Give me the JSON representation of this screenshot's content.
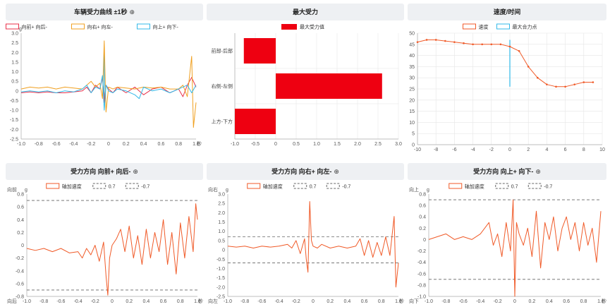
{
  "panels": {
    "p1": {
      "title": "车辆受力曲线 ±1秒",
      "zoom_icon": "zoom-in-icon"
    },
    "p2": {
      "title": "最大受力"
    },
    "p3": {
      "title": "速度/时间"
    },
    "p4": {
      "title": "受力方向 向前+ 向后-",
      "zoom_icon": "zoom-in-icon"
    },
    "p5": {
      "title": "受力方向 向右+ 向左-",
      "zoom_icon": "zoom-in-icon"
    },
    "p6": {
      "title": "受力方向 向上+ 向下-",
      "zoom_icon": "zoom-in-icon"
    }
  },
  "colors": {
    "red": "#e8304a",
    "orange": "#f0a020",
    "cyan": "#30b8e8",
    "bar": "#ee0011",
    "line": "#f05a28",
    "dash": "#666666"
  },
  "chart_data": [
    {
      "id": "p1",
      "type": "line",
      "ylabel": "g",
      "xlabel": "",
      "xlim": [
        -1.0,
        1.0
      ],
      "ylim": [
        -2.5,
        3.0
      ],
      "xticks": [
        "-1.0",
        "-0.8",
        "-0.6",
        "-0.4",
        "-0.2",
        "0",
        "0.2",
        "0.4",
        "0.6",
        "0.8",
        "1.0"
      ],
      "yticks": [
        "3.0",
        "2.5",
        "2.0",
        "1.5",
        "1.0",
        "0.5",
        "0",
        "-0.5",
        "-1.0",
        "-1.5",
        "-2.0",
        "-2.5"
      ],
      "x_unit": "秒",
      "legend": [
        "向前+ 向后-",
        "向右+ 向左-",
        "向上+ 向下-"
      ],
      "marker_x": -0.05,
      "series": [
        {
          "name": "向前+ 向后-",
          "color": "#e8304a",
          "x": [
            -1.0,
            -0.9,
            -0.8,
            -0.7,
            -0.6,
            -0.5,
            -0.4,
            -0.3,
            -0.25,
            -0.2,
            -0.15,
            -0.1,
            -0.07,
            -0.05,
            -0.03,
            0,
            0.05,
            0.1,
            0.2,
            0.3,
            0.4,
            0.5,
            0.6,
            0.7,
            0.8,
            0.85,
            0.9,
            0.95,
            1.0
          ],
          "values": [
            -0.1,
            -0.05,
            -0.1,
            -0.05,
            -0.1,
            -0.1,
            -0.05,
            0.0,
            0.2,
            -0.1,
            0.3,
            0.1,
            0.7,
            -0.6,
            0.3,
            0.1,
            -0.1,
            0.2,
            -0.1,
            0.2,
            -0.2,
            0.1,
            0.2,
            -0.1,
            0.1,
            -0.3,
            0.3,
            0.7,
            0.2
          ]
        },
        {
          "name": "向右+ 向左-",
          "color": "#f0a020",
          "x": [
            -1.0,
            -0.9,
            -0.8,
            -0.7,
            -0.6,
            -0.5,
            -0.4,
            -0.3,
            -0.25,
            -0.2,
            -0.15,
            -0.1,
            -0.07,
            -0.05,
            -0.03,
            0,
            0.05,
            0.1,
            0.2,
            0.3,
            0.4,
            0.5,
            0.6,
            0.7,
            0.8,
            0.85,
            0.9,
            0.95,
            0.97,
            1.0
          ],
          "values": [
            0.1,
            0.2,
            0.15,
            0.2,
            0.1,
            0.2,
            0.15,
            0.1,
            0.3,
            0.5,
            0.2,
            0.4,
            -0.4,
            2.6,
            -1.1,
            0.2,
            0.1,
            0.2,
            0.15,
            0.1,
            0.2,
            0.15,
            0.2,
            0.1,
            0.1,
            0.3,
            -0.3,
            1.8,
            -1.9,
            -0.6
          ]
        },
        {
          "name": "向上+ 向下-",
          "color": "#30b8e8",
          "x": [
            -1.0,
            -0.9,
            -0.8,
            -0.7,
            -0.6,
            -0.5,
            -0.4,
            -0.3,
            -0.25,
            -0.2,
            -0.15,
            -0.1,
            -0.07,
            -0.05,
            -0.03,
            0,
            0.05,
            0.1,
            0.2,
            0.3,
            0.35,
            0.4,
            0.5,
            0.6,
            0.7,
            0.8,
            0.9,
            0.95,
            1.0
          ],
          "values": [
            -0.05,
            0.0,
            -0.05,
            0.0,
            -0.1,
            0.0,
            -0.05,
            0.1,
            0.3,
            -0.1,
            0.2,
            0.1,
            0.8,
            -1.0,
            0.3,
            0.0,
            -0.1,
            0.1,
            0.0,
            -0.2,
            -0.4,
            0.2,
            0.0,
            0.1,
            -0.1,
            0.1,
            0.3,
            -0.1,
            0.3
          ]
        }
      ]
    },
    {
      "id": "p2",
      "type": "bar",
      "orientation": "horizontal",
      "categories": [
        "前部-后部",
        "右侧-左侧",
        "上方-下方"
      ],
      "values": [
        -0.78,
        2.6,
        -1.0
      ],
      "xlim": [
        -1.0,
        3.0
      ],
      "xticks": [
        "-1.0",
        "-0.5",
        "0",
        "0.5",
        "1.0",
        "1.5",
        "2.0",
        "2.5",
        "3.0"
      ],
      "legend": [
        "最大受力值"
      ]
    },
    {
      "id": "p3",
      "type": "line",
      "xlim": [
        -10,
        10
      ],
      "ylim": [
        0,
        50
      ],
      "xticks": [
        "-10",
        "-8",
        "-6",
        "-4",
        "-2",
        "0",
        "2",
        "4",
        "6",
        "8",
        "10"
      ],
      "yticks": [
        "50",
        "45",
        "40",
        "35",
        "30",
        "25",
        "20",
        "15",
        "10",
        "5",
        "0"
      ],
      "legend": [
        "速度",
        "最大合力点"
      ],
      "marker_x": 0,
      "marker_range": [
        26,
        47
      ],
      "series": [
        {
          "name": "速度",
          "x": [
            -10,
            -9,
            -8,
            -7,
            -6,
            -5,
            -4,
            -3,
            -2,
            -1,
            0,
            1,
            2,
            3,
            4,
            5,
            6,
            7,
            8,
            9
          ],
          "values": [
            46,
            47,
            47,
            46.5,
            46,
            45.5,
            45,
            45,
            45,
            45,
            44,
            42,
            35,
            30,
            27,
            26,
            26,
            27,
            28,
            28
          ]
        }
      ]
    },
    {
      "id": "p4",
      "type": "line",
      "ylabel": "g",
      "y_caption": "向前",
      "x_caption": "向后",
      "xlim": [
        -1.0,
        1.0
      ],
      "ylim": [
        -0.8,
        0.8
      ],
      "xticks": [
        "-1.0",
        "-0.8",
        "-0.6",
        "-0.4",
        "-0.2",
        "0",
        "0.2",
        "0.4",
        "0.6",
        "0.8",
        "1.0"
      ],
      "yticks": [
        "0.8",
        "0.6",
        "0.4",
        "0.2",
        "0",
        "-0.2",
        "-0.4",
        "-0.6",
        "-0.8"
      ],
      "x_unit": "秒",
      "legend": [
        "轴加速度",
        "0.7",
        "-0.7"
      ],
      "thresholds": [
        0.7,
        -0.7
      ],
      "series": [
        {
          "name": "轴加速度",
          "x": [
            -1.0,
            -0.9,
            -0.8,
            -0.7,
            -0.6,
            -0.5,
            -0.4,
            -0.35,
            -0.3,
            -0.25,
            -0.2,
            -0.15,
            -0.1,
            -0.07,
            -0.05,
            -0.03,
            0,
            0.05,
            0.1,
            0.15,
            0.2,
            0.25,
            0.3,
            0.35,
            0.4,
            0.45,
            0.5,
            0.55,
            0.6,
            0.65,
            0.7,
            0.75,
            0.8,
            0.85,
            0.9,
            0.95,
            0.98,
            1.0
          ],
          "values": [
            -0.05,
            -0.08,
            -0.05,
            -0.1,
            -0.05,
            -0.12,
            -0.1,
            -0.2,
            -0.05,
            -0.15,
            0.0,
            -0.25,
            0.05,
            -0.5,
            -0.78,
            -0.2,
            0.0,
            0.1,
            0.25,
            -0.1,
            0.3,
            -0.2,
            0.15,
            -0.3,
            0.25,
            -0.2,
            0.2,
            -0.1,
            0.4,
            -0.3,
            0.2,
            -0.45,
            0.35,
            -0.2,
            0.45,
            -0.1,
            0.65,
            0.4
          ]
        }
      ]
    },
    {
      "id": "p5",
      "type": "line",
      "ylabel": "g",
      "y_caption": "向右",
      "x_caption": "向左",
      "xlim": [
        -1.0,
        1.0
      ],
      "ylim": [
        -2.5,
        3.0
      ],
      "xticks": [
        "-1.0",
        "-0.8",
        "-0.6",
        "-0.4",
        "-0.2",
        "0",
        "0.2",
        "0.4",
        "0.6",
        "0.8",
        "1.0"
      ],
      "yticks": [
        "3.0",
        "2.5",
        "2.0",
        "1.5",
        "1.0",
        "0.5",
        "0",
        "-0.5",
        "-1.0",
        "-1.5",
        "-2.0",
        "-2.5"
      ],
      "x_unit": "秒",
      "legend": [
        "轴加速度",
        "0.7",
        "-0.7"
      ],
      "thresholds": [
        0.7,
        -0.7
      ],
      "series": [
        {
          "name": "轴加速度",
          "x": [
            -1.0,
            -0.9,
            -0.8,
            -0.7,
            -0.6,
            -0.5,
            -0.4,
            -0.3,
            -0.25,
            -0.2,
            -0.15,
            -0.1,
            -0.08,
            -0.06,
            -0.04,
            -0.02,
            0,
            0.05,
            0.1,
            0.2,
            0.3,
            0.4,
            0.5,
            0.55,
            0.6,
            0.65,
            0.7,
            0.75,
            0.8,
            0.85,
            0.9,
            0.95,
            0.97,
            1.0
          ],
          "values": [
            0.2,
            0.15,
            0.2,
            0.1,
            0.2,
            0.15,
            0.2,
            0.3,
            0.1,
            0.5,
            -0.2,
            0.6,
            -0.5,
            -1.2,
            2.6,
            0.5,
            0.2,
            0.1,
            0.3,
            0.1,
            0.2,
            0.1,
            0.2,
            0.6,
            -0.3,
            0.5,
            -0.4,
            0.4,
            -0.3,
            0.7,
            -0.3,
            1.8,
            -2.0,
            -0.7
          ]
        }
      ]
    },
    {
      "id": "p6",
      "type": "line",
      "ylabel": "g",
      "y_caption": "向上",
      "x_caption": "向下",
      "xlim": [
        -1.0,
        1.0
      ],
      "ylim": [
        -1.0,
        0.8
      ],
      "xticks": [
        "-1.0",
        "-0.8",
        "-0.6",
        "-0.4",
        "-0.2",
        "0",
        "0.2",
        "0.4",
        "0.6",
        "0.8",
        "1.0"
      ],
      "yticks": [
        "0.8",
        "0.6",
        "0.4",
        "0.2",
        "0",
        "-0.2",
        "-0.4",
        "-0.6",
        "-0.8",
        "-1.0"
      ],
      "x_unit": "秒",
      "legend": [
        "轴加速度",
        "0.7",
        "-0.7"
      ],
      "thresholds": [
        0.7,
        -0.7
      ],
      "series": [
        {
          "name": "轴加速度",
          "x": [
            -1.0,
            -0.9,
            -0.8,
            -0.7,
            -0.6,
            -0.5,
            -0.4,
            -0.3,
            -0.25,
            -0.2,
            -0.15,
            -0.1,
            -0.05,
            -0.02,
            0,
            0.02,
            0.05,
            0.1,
            0.15,
            0.2,
            0.25,
            0.3,
            0.35,
            0.4,
            0.45,
            0.5,
            0.55,
            0.6,
            0.65,
            0.7,
            0.75,
            0.8,
            0.85,
            0.9,
            0.95,
            1.0
          ],
          "values": [
            0.0,
            0.05,
            0.1,
            0.0,
            0.05,
            0.0,
            0.1,
            0.3,
            -0.1,
            0.1,
            -0.3,
            0.3,
            -0.2,
            0.7,
            -1.0,
            0.3,
            0.1,
            -0.1,
            0.2,
            -0.3,
            0.5,
            -0.5,
            0.3,
            0.0,
            0.4,
            -0.2,
            0.2,
            0.4,
            0.0,
            0.3,
            -0.2,
            0.3,
            -0.1,
            0.2,
            -0.4,
            0.5
          ]
        }
      ]
    }
  ]
}
